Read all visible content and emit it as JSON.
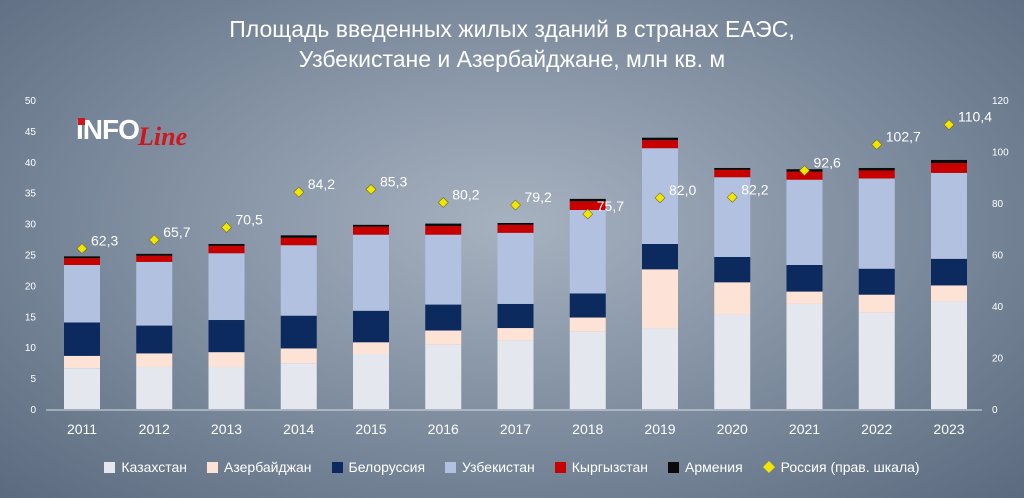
{
  "chart_data": {
    "type": "bar",
    "title_lines": [
      "Площадь введенных жилых зданий в странах ЕАЭС,",
      "Узбекистане и Азербайджане, млн кв. м"
    ],
    "categories": [
      "2011",
      "2012",
      "2013",
      "2014",
      "2015",
      "2016",
      "2017",
      "2018",
      "2019",
      "2020",
      "2021",
      "2022",
      "2023"
    ],
    "stacked": true,
    "ylim": [
      0,
      50
    ],
    "yticks": [
      0,
      5,
      10,
      15,
      20,
      25,
      30,
      35,
      40,
      45,
      50
    ],
    "y2lim": [
      0,
      120
    ],
    "y2ticks": [
      0,
      20,
      40,
      60,
      80,
      100,
      120
    ],
    "grid": false,
    "legend_position": "bottom",
    "series": [
      {
        "name": "Казахстан",
        "color": "#e4e7ee",
        "values": [
          6.6,
          6.8,
          6.8,
          7.4,
          8.9,
          10.4,
          11.1,
          12.5,
          13.1,
          15.3,
          17.0,
          15.6,
          17.4
        ]
      },
      {
        "name": "Азербайджан",
        "color": "#fde3d5",
        "values": [
          2.0,
          2.2,
          2.4,
          2.4,
          1.9,
          2.3,
          2.0,
          2.3,
          9.5,
          5.2,
          2.0,
          2.9,
          2.6
        ]
      },
      {
        "name": "Белоруссия",
        "color": "#0d2a5e",
        "values": [
          5.4,
          4.5,
          5.2,
          5.3,
          5.1,
          4.2,
          3.9,
          3.9,
          4.1,
          4.1,
          4.3,
          4.2,
          4.3
        ]
      },
      {
        "name": "Узбекистан",
        "color": "#b3c1e1",
        "values": [
          9.3,
          10.3,
          10.8,
          11.4,
          12.3,
          11.3,
          11.5,
          13.5,
          15.5,
          12.9,
          13.8,
          14.6,
          13.9
        ]
      },
      {
        "name": "Кыргызстан",
        "color": "#c80000",
        "values": [
          1.1,
          1.0,
          1.2,
          1.2,
          1.3,
          1.4,
          1.3,
          1.4,
          1.3,
          1.2,
          1.3,
          1.3,
          1.6
        ]
      },
      {
        "name": "Армения",
        "color": "#0a0a0a",
        "values": [
          0.3,
          0.3,
          0.3,
          0.4,
          0.3,
          0.4,
          0.3,
          0.4,
          0.4,
          0.3,
          0.4,
          0.4,
          0.5
        ]
      }
    ],
    "line_series": {
      "name": "Россия (прав. шкала)",
      "axis": "right",
      "color": "#f2e600",
      "values": [
        62.3,
        65.7,
        70.5,
        84.2,
        85.3,
        80.2,
        79.2,
        75.7,
        82.0,
        82.2,
        92.6,
        102.7,
        110.4
      ],
      "labels": [
        "62,3",
        "65,7",
        "70,5",
        "84,2",
        "85,3",
        "80,2",
        "79,2",
        "75,7",
        "82,0",
        "82,2",
        "92,6",
        "102,7",
        "110,4"
      ]
    }
  },
  "logo": {
    "part1": "INFO",
    "part2": "Line"
  }
}
